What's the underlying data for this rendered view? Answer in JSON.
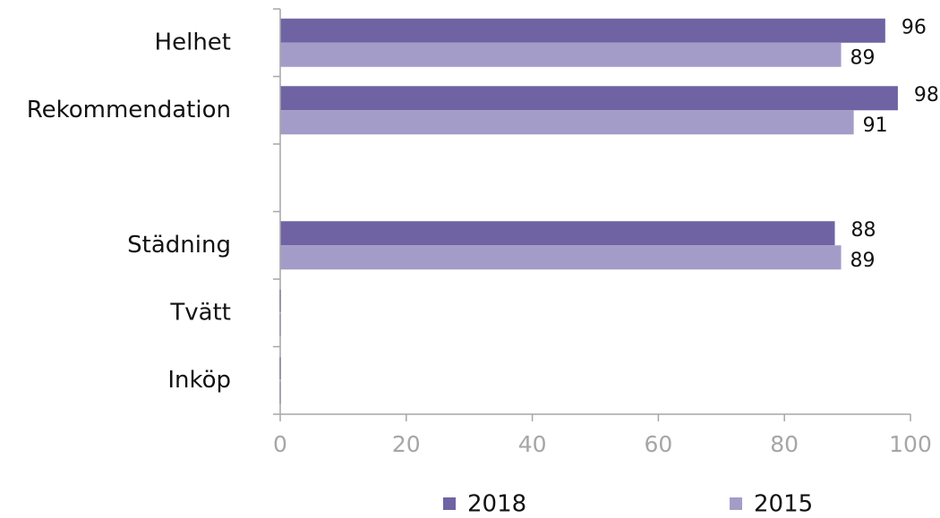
{
  "chart_data": {
    "type": "bar",
    "orientation": "horizontal",
    "categories": [
      "Helhet",
      "Rekommendation",
      "",
      "Städning",
      "Tvätt",
      "Inköp"
    ],
    "series": [
      {
        "name": "2018",
        "color": "#6f63a3",
        "values": [
          96,
          98,
          null,
          88,
          0,
          0
        ]
      },
      {
        "name": "2015",
        "color": "#a49cc8",
        "values": [
          89,
          91,
          null,
          89,
          0,
          0
        ]
      }
    ],
    "data_labels": [
      [
        "96",
        "98",
        "",
        "88",
        "",
        ""
      ],
      [
        "89",
        "91",
        "",
        "89",
        "",
        ""
      ]
    ],
    "x_ticks": [
      "0",
      "20",
      "40",
      "60",
      "80",
      "100"
    ],
    "xlim": [
      0,
      100
    ],
    "grid": false,
    "legend_position": "bottom",
    "title": "",
    "xlabel": "",
    "ylabel": ""
  }
}
